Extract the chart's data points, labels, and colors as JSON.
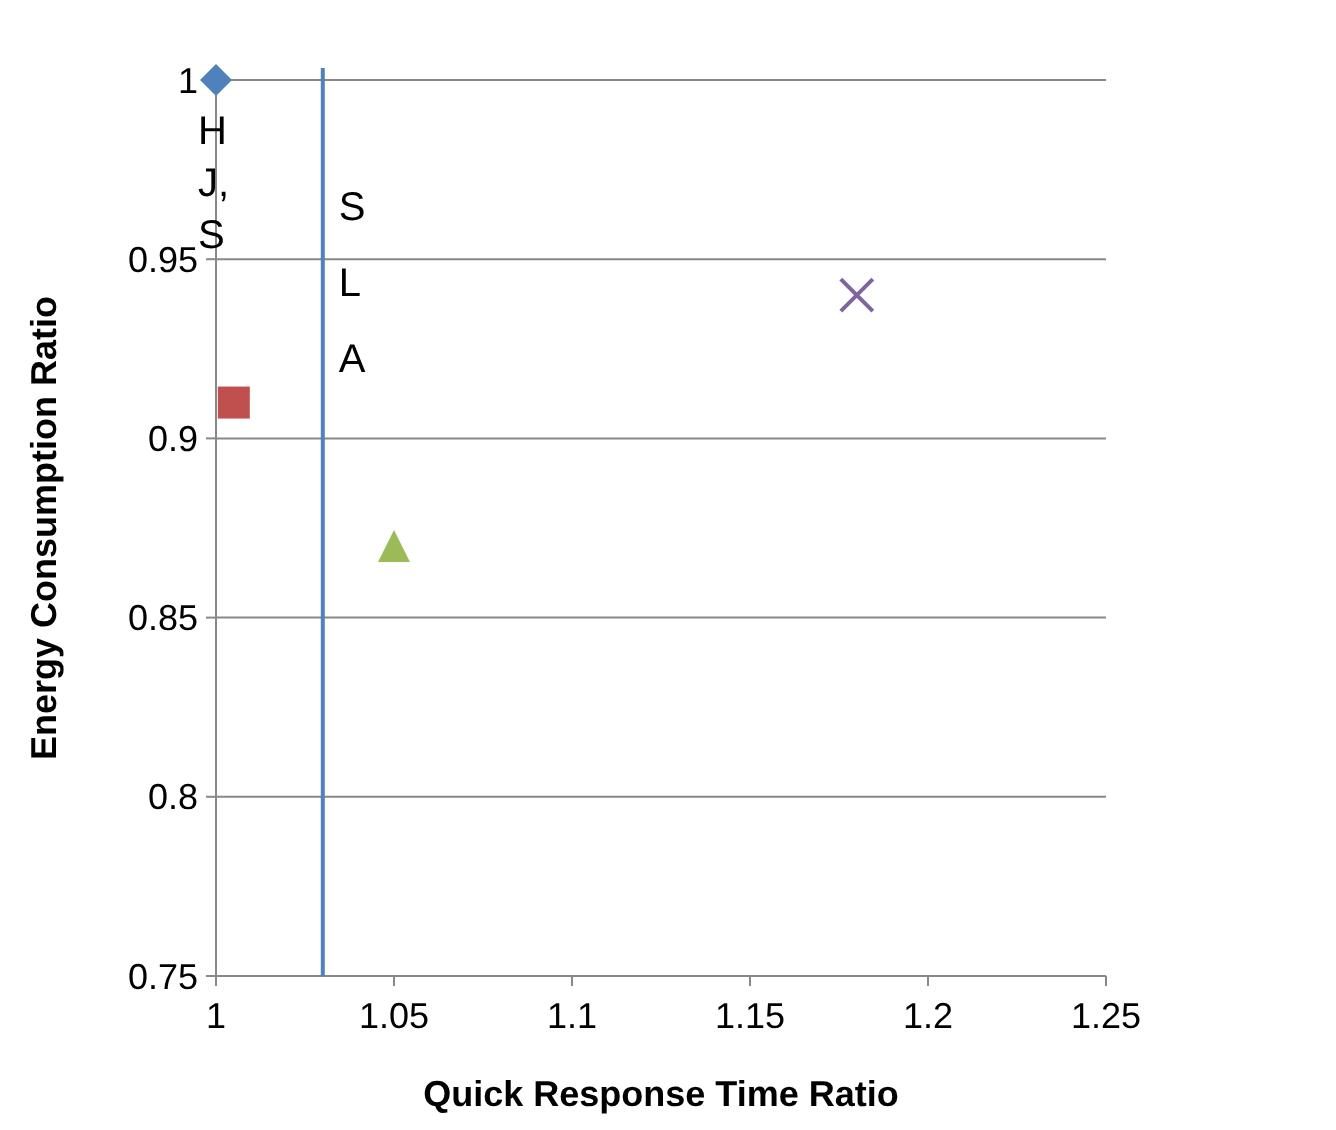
{
  "chart_data": {
    "type": "scatter",
    "xlabel": "Quick Response Time Ratio",
    "ylabel": "Energy Consumption Ratio",
    "xlim": [
      1,
      1.25
    ],
    "xticks": [
      1,
      1.05,
      1.1,
      1.15,
      1.2,
      1.25
    ],
    "ylim": [
      0.75,
      1
    ],
    "yticks": [
      0.75,
      0.8,
      0.85,
      0.9,
      0.95,
      1
    ],
    "grid": "y",
    "series": [
      {
        "color": "#4f81bd",
        "marker": "diamond",
        "x": [
          1
        ],
        "values": [
          1
        ]
      },
      {
        "color": "#c0504d",
        "marker": "square",
        "x": [
          1.005
        ],
        "values": [
          0.91
        ]
      },
      {
        "color": "#9bbb59",
        "marker": "triangle",
        "x": [
          1.05
        ],
        "values": [
          0.87
        ]
      },
      {
        "color": "#8064a2",
        "marker": "cross",
        "x": [
          1.18
        ],
        "values": [
          0.94
        ]
      }
    ],
    "ref_lines": [
      {
        "axis": "x",
        "value": 1.03,
        "label": "SLA",
        "color": "#4f81bd"
      }
    ],
    "annotations": [
      {
        "text": "HJ,S",
        "x": 1,
        "y": 1
      }
    ]
  }
}
